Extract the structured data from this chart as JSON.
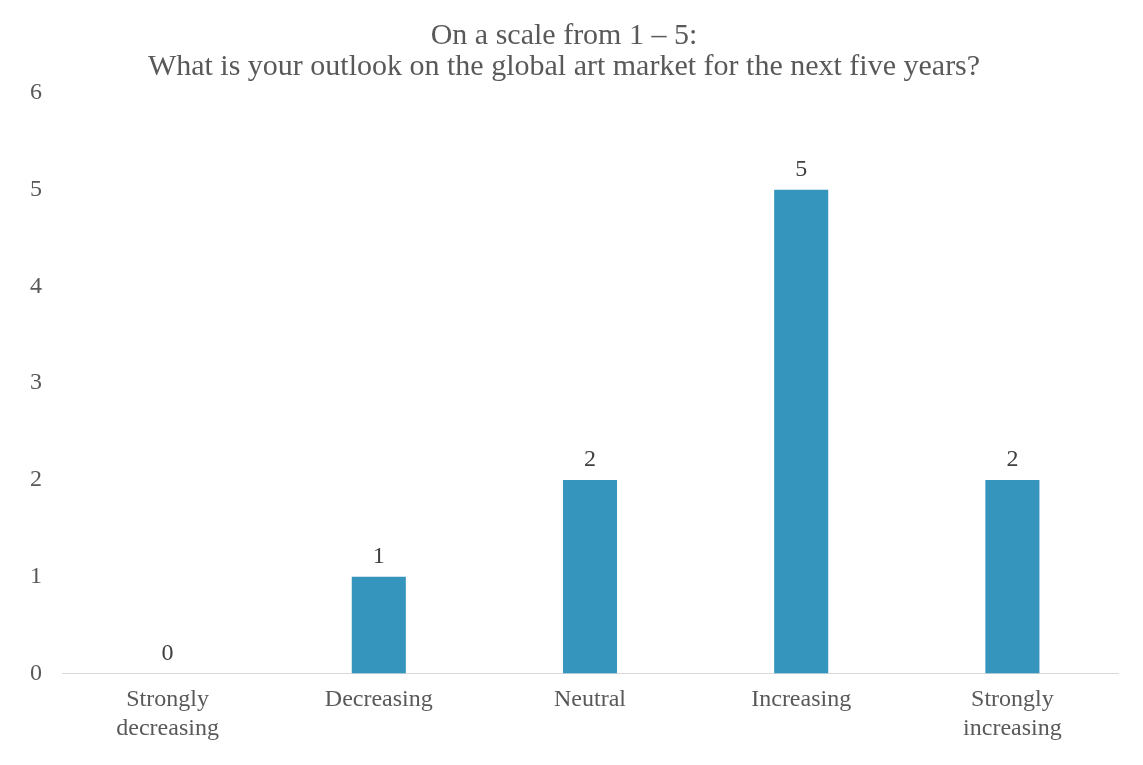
{
  "chart_data": {
    "type": "bar",
    "title": "On a scale from 1 – 5:\nWhat is your outlook on the global art market for the next five years?",
    "categories": [
      "Strongly decreasing",
      "Decreasing",
      "Neutral",
      "Increasing",
      "Strongly increasing"
    ],
    "values": [
      0,
      1,
      2,
      5,
      2
    ],
    "color": "#3595bc",
    "ylim": [
      0,
      6
    ],
    "yticks": [
      0,
      1,
      2,
      3,
      4,
      5,
      6
    ],
    "grid": false,
    "legend": false,
    "data_labels": true
  }
}
